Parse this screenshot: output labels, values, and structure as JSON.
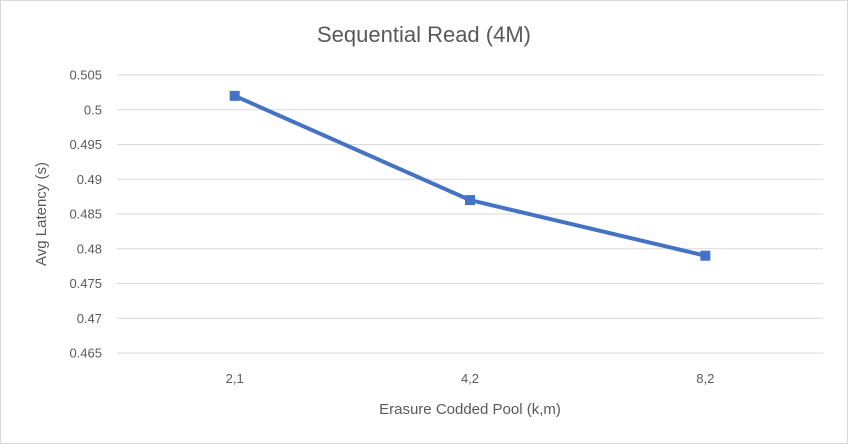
{
  "chart_data": {
    "type": "line",
    "title": "Sequential Read (4M)",
    "xlabel": "Erasure Codded Pool (k,m)",
    "ylabel": "Avg Latency (s)",
    "categories": [
      "2,1",
      "4,2",
      "8,2"
    ],
    "series": [
      {
        "values": [
          0.502,
          0.487,
          0.479
        ],
        "color": "#4472C4",
        "marker": "square"
      }
    ],
    "ylim": [
      0.465,
      0.505
    ],
    "yticks": [
      "0.465",
      "0.47",
      "0.475",
      "0.48",
      "0.485",
      "0.49",
      "0.495",
      "0.5",
      "0.505"
    ],
    "ytick_values": [
      0.465,
      0.47,
      0.475,
      0.48,
      0.485,
      0.49,
      0.495,
      0.5,
      0.505
    ],
    "grid": true,
    "legend": "none",
    "colors": {
      "gridline": "#d9d9d9",
      "text": "#595959"
    }
  }
}
